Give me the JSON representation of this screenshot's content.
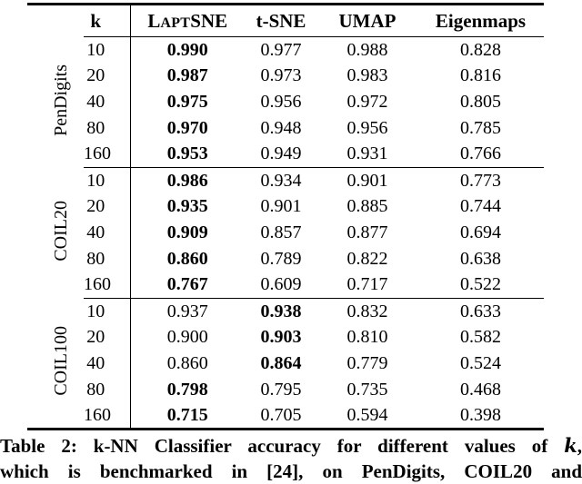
{
  "table": {
    "header": {
      "k": "k",
      "laptsne_pre": "L",
      "laptsne_sc": "apt",
      "laptsne_post": "SNE",
      "tsne": "t-SNE",
      "umap": "UMAP",
      "eigenmaps": "Eigenmaps"
    },
    "groups": [
      {
        "name": "PenDigits",
        "rows": [
          {
            "k": "10",
            "laptsne": "0.990",
            "tsne": "0.977",
            "umap": "0.988",
            "eigenmaps": "0.828",
            "winner": "laptsne"
          },
          {
            "k": "20",
            "laptsne": "0.987",
            "tsne": "0.973",
            "umap": "0.983",
            "eigenmaps": "0.816",
            "winner": "laptsne"
          },
          {
            "k": "40",
            "laptsne": "0.975",
            "tsne": "0.956",
            "umap": "0.972",
            "eigenmaps": "0.805",
            "winner": "laptsne"
          },
          {
            "k": "80",
            "laptsne": "0.970",
            "tsne": "0.948",
            "umap": "0.956",
            "eigenmaps": "0.785",
            "winner": "laptsne"
          },
          {
            "k": "160",
            "laptsne": "0.953",
            "tsne": "0.949",
            "umap": "0.931",
            "eigenmaps": "0.766",
            "winner": "laptsne"
          }
        ]
      },
      {
        "name": "COIL20",
        "rows": [
          {
            "k": "10",
            "laptsne": "0.986",
            "tsne": "0.934",
            "umap": "0.901",
            "eigenmaps": "0.773",
            "winner": "laptsne"
          },
          {
            "k": "20",
            "laptsne": "0.935",
            "tsne": "0.901",
            "umap": "0.885",
            "eigenmaps": "0.744",
            "winner": "laptsne"
          },
          {
            "k": "40",
            "laptsne": "0.909",
            "tsne": "0.857",
            "umap": "0.877",
            "eigenmaps": "0.694",
            "winner": "laptsne"
          },
          {
            "k": "80",
            "laptsne": "0.860",
            "tsne": "0.789",
            "umap": "0.822",
            "eigenmaps": "0.638",
            "winner": "laptsne"
          },
          {
            "k": "160",
            "laptsne": "0.767",
            "tsne": "0.609",
            "umap": "0.717",
            "eigenmaps": "0.522",
            "winner": "laptsne"
          }
        ]
      },
      {
        "name": "COIL100",
        "rows": [
          {
            "k": "10",
            "laptsne": "0.937",
            "tsne": "0.938",
            "umap": "0.832",
            "eigenmaps": "0.633",
            "winner": "tsne"
          },
          {
            "k": "20",
            "laptsne": "0.900",
            "tsne": "0.903",
            "umap": "0.810",
            "eigenmaps": "0.582",
            "winner": "tsne"
          },
          {
            "k": "40",
            "laptsne": "0.860",
            "tsne": "0.864",
            "umap": "0.779",
            "eigenmaps": "0.524",
            "winner": "tsne"
          },
          {
            "k": "80",
            "laptsne": "0.798",
            "tsne": "0.795",
            "umap": "0.735",
            "eigenmaps": "0.468",
            "winner": "laptsne"
          },
          {
            "k": "160",
            "laptsne": "0.715",
            "tsne": "0.705",
            "umap": "0.594",
            "eigenmaps": "0.398",
            "winner": "laptsne"
          }
        ]
      }
    ]
  },
  "caption": {
    "line1_text": "Table 2: k-NN Classifier accuracy for different values of ",
    "line1_kvar": "k",
    "line1_end": ",",
    "line2": "which is benchmarked in [24], on PenDigits, COIL20 and"
  },
  "colors": {
    "text": "#000000",
    "background": "#ffffff",
    "rule": "#000000"
  }
}
